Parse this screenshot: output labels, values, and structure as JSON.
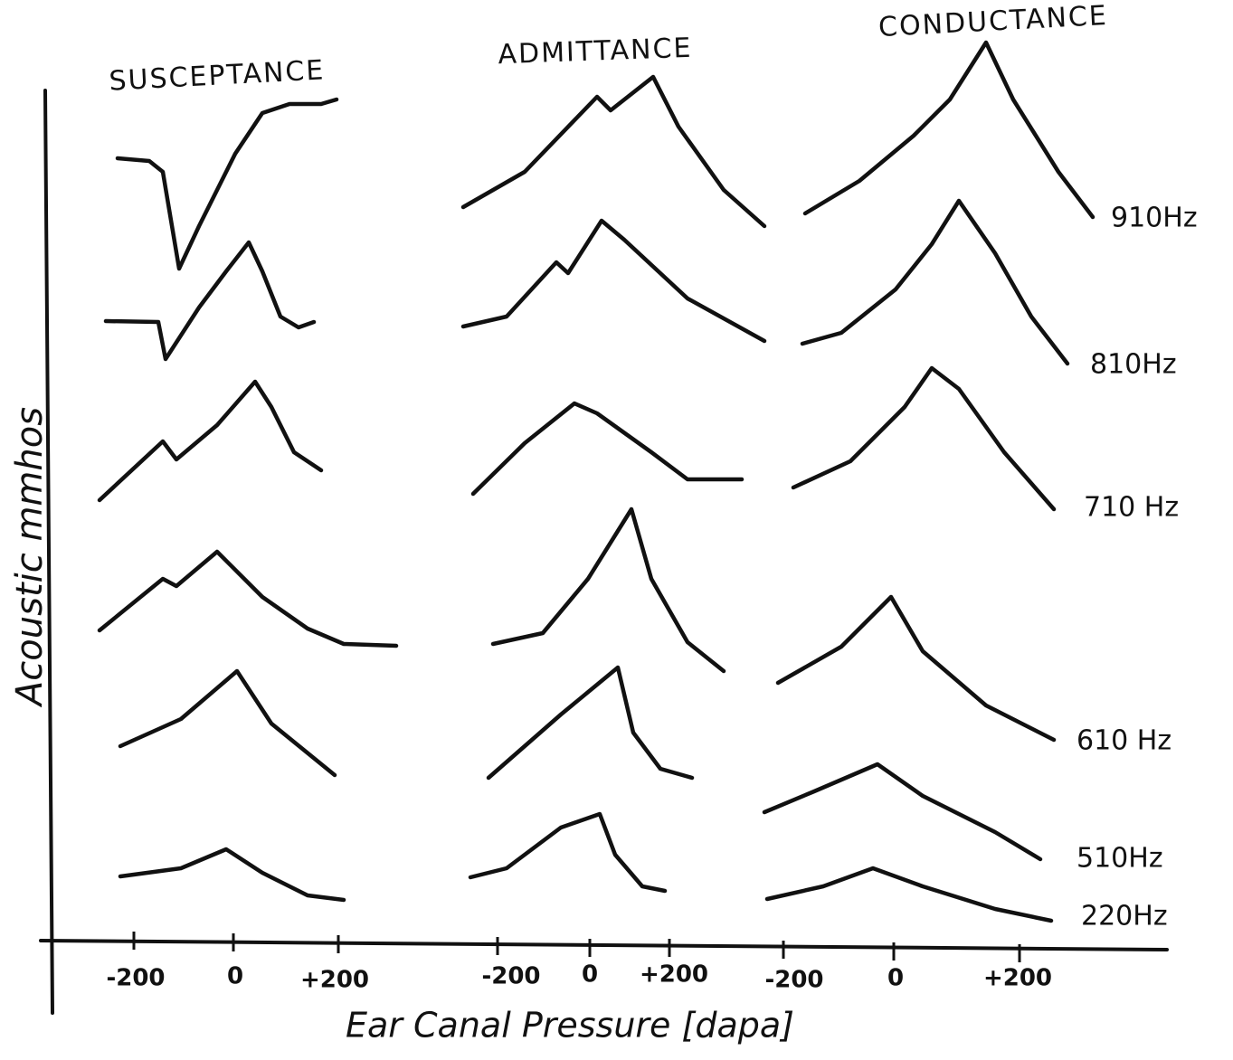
{
  "columns": [
    {
      "title": "SUSCEPTANCE",
      "ticks": [
        "-200",
        "0",
        "+200"
      ]
    },
    {
      "title": "ADMITTANCE",
      "ticks": [
        "-200",
        "0",
        "+200"
      ]
    },
    {
      "title": "CONDUCTANCE",
      "ticks": [
        "-200",
        "0",
        "+200"
      ]
    }
  ],
  "frequencies": [
    "910Hz",
    "810Hz",
    "710 Hz",
    "610 Hz",
    "510Hz",
    "220Hz"
  ],
  "y_axis_label": "Acoustic mmhos",
  "x_axis_label": "Ear Canal Pressure [dapa]"
}
